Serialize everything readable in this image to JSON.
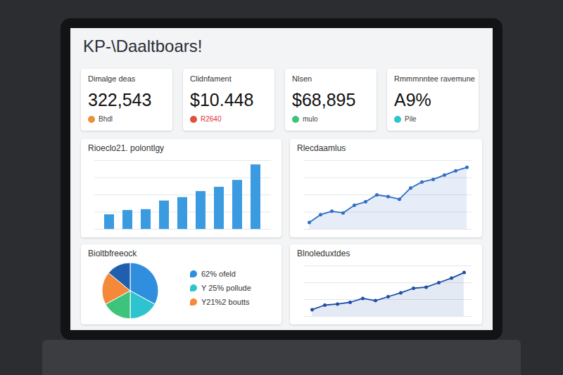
{
  "header": {
    "title": "KP-\\Daaltboars!"
  },
  "kpis": [
    {
      "label": "Dimalge deas",
      "value": "322,543",
      "note": "Bhdl",
      "color": "#e8913a"
    },
    {
      "label": "Clidnfament",
      "value": "$10.448",
      "note": "R2640",
      "color": "#e0503a",
      "note_color": "#e0323c"
    },
    {
      "label": "Nlsen",
      "value": "$68,895",
      "note": "mulo",
      "color": "#3cc47c"
    },
    {
      "label": "Rmmmnntee ravemune",
      "value": "A9%",
      "note": "Pile",
      "color": "#2ec4cf"
    }
  ],
  "chart_data": [
    {
      "type": "bar",
      "title": "Rioeclo21. polontlgy",
      "categories": [
        null,
        null,
        null,
        null,
        null,
        null,
        null,
        null,
        null
      ],
      "values": [
        17,
        22,
        23,
        33,
        37,
        44,
        49,
        57,
        75
      ],
      "color": "#3a9be0",
      "ylim": [
        0,
        80
      ],
      "yticks": [
        0,
        20,
        40,
        60,
        80
      ],
      "grid": true,
      "tick_labels": false
    },
    {
      "type": "line",
      "title": "Rlecdaamlus",
      "categories": [
        null,
        null,
        null,
        null,
        null,
        null,
        null,
        null,
        null,
        null,
        null,
        null,
        null,
        null,
        null
      ],
      "values": [
        8,
        17,
        21,
        19,
        28,
        32,
        40,
        38,
        35,
        48,
        55,
        58,
        63,
        68,
        72
      ],
      "color": "#2f6fc4",
      "marker": "circle",
      "ylim": [
        0,
        80
      ],
      "yticks": [
        0,
        20,
        40,
        60,
        80
      ],
      "grid": true,
      "tick_labels": false
    },
    {
      "type": "pie",
      "title": "Bioltbfreeock",
      "values": [
        33,
        17,
        17,
        19,
        14
      ],
      "colors": [
        "#2f8fde",
        "#2ec4cf",
        "#3cc47c",
        "#f5893a",
        "#1f5fae"
      ],
      "legend": "right",
      "legend_entries": [
        {
          "label": "62% ofeld",
          "color": "#2f8fde"
        },
        {
          "label": "Y 25% pollude",
          "color": "#2ec4cf"
        },
        {
          "label": "Y21%2 boutts",
          "color": "#f5893a"
        }
      ]
    },
    {
      "type": "line",
      "title": "Blnoleduxtdes",
      "categories": [
        null,
        null,
        null,
        null,
        null,
        null,
        null,
        null,
        null,
        null,
        null,
        null,
        null
      ],
      "values": [
        12,
        20,
        22,
        25,
        32,
        28,
        35,
        42,
        50,
        52,
        60,
        68,
        78
      ],
      "color": "#1f4fa8",
      "marker": "circle",
      "ylim": [
        0,
        90
      ],
      "yticks": [
        0,
        30,
        60,
        90
      ],
      "grid": true,
      "tick_labels": false
    }
  ]
}
